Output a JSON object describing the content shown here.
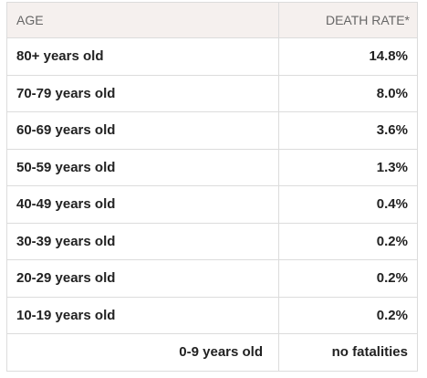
{
  "table": {
    "headers": {
      "age": "AGE",
      "death_rate": "DEATH RATE*"
    },
    "rows": [
      {
        "age": "80+ years old",
        "rate": "14.8%"
      },
      {
        "age": "70-79 years old",
        "rate": "8.0%"
      },
      {
        "age": "60-69 years old",
        "rate": "3.6%"
      },
      {
        "age": "50-59 years old",
        "rate": "1.3%"
      },
      {
        "age": "40-49 years old",
        "rate": "0.4%"
      },
      {
        "age": "30-39 years old",
        "rate": "0.2%"
      },
      {
        "age": "20-29 years old",
        "rate": "0.2%"
      },
      {
        "age": "10-19 years old",
        "rate": "0.2%"
      },
      {
        "age": "0-9 years old",
        "rate": "no fatalities"
      }
    ]
  }
}
